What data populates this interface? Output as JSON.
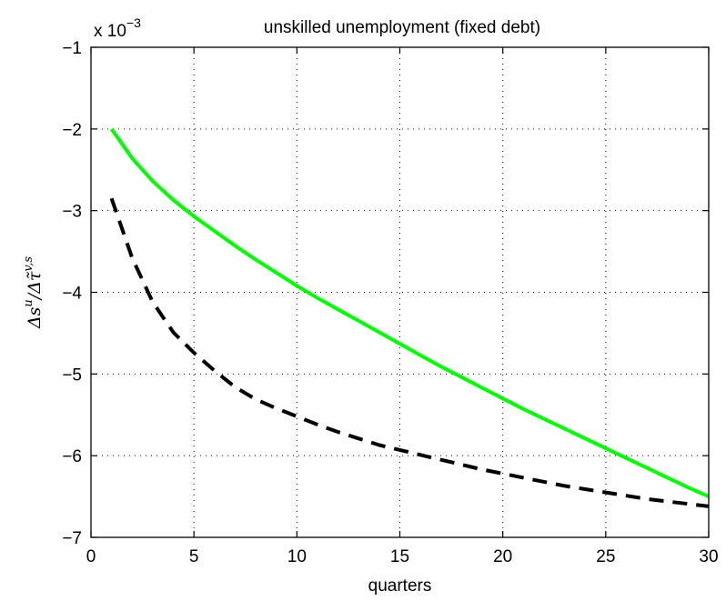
{
  "chart_data": {
    "type": "line",
    "title": "unskilled unemployment (fixed debt)",
    "xlabel": "quarters",
    "ylabel": "Δs^u/Δτ̃^{v,s}",
    "ylabel_parts": {
      "num_base": "Δs",
      "num_sup": "u",
      "sep": "/Δ",
      "den_base": "τ̃",
      "den_sup": "v,s"
    },
    "y_multiplier": {
      "base": "x 10",
      "exponent": "−3"
    },
    "xlim": [
      0,
      30
    ],
    "ylim": [
      -7,
      -1
    ],
    "xticks": [
      0,
      5,
      10,
      15,
      20,
      25,
      30
    ],
    "yticks": [
      -7,
      -6,
      -5,
      -4,
      -3,
      -2,
      -1
    ],
    "ytick_labels": [
      "−7",
      "−6",
      "−5",
      "−4",
      "−3",
      "−2",
      "−1"
    ],
    "grid": true,
    "series": [
      {
        "style": "solid",
        "color": "#00ff00",
        "x": [
          1,
          2,
          3,
          4,
          5,
          6,
          7,
          8,
          9,
          10,
          11,
          12,
          13,
          14,
          15,
          16,
          17,
          18,
          19,
          20,
          21,
          22,
          23,
          24,
          25,
          26,
          27,
          28,
          29,
          30
        ],
        "values": [
          -2.0,
          -2.36,
          -2.64,
          -2.87,
          -3.07,
          -3.25,
          -3.43,
          -3.6,
          -3.76,
          -3.92,
          -4.07,
          -4.21,
          -4.35,
          -4.49,
          -4.63,
          -4.77,
          -4.91,
          -5.04,
          -5.17,
          -5.3,
          -5.43,
          -5.55,
          -5.67,
          -5.79,
          -5.91,
          -6.03,
          -6.15,
          -6.27,
          -6.39,
          -6.5
        ]
      },
      {
        "style": "dashed",
        "color": "#000000",
        "x": [
          1,
          2,
          3,
          4,
          5,
          6,
          7,
          8,
          9,
          10,
          11,
          12,
          13,
          14,
          15,
          16,
          17,
          18,
          19,
          20,
          21,
          22,
          23,
          24,
          25,
          26,
          27,
          28,
          29,
          30
        ],
        "values": [
          -2.85,
          -3.58,
          -4.12,
          -4.49,
          -4.74,
          -4.96,
          -5.16,
          -5.31,
          -5.42,
          -5.52,
          -5.62,
          -5.71,
          -5.79,
          -5.87,
          -5.93,
          -5.99,
          -6.05,
          -6.11,
          -6.17,
          -6.22,
          -6.27,
          -6.32,
          -6.37,
          -6.41,
          -6.45,
          -6.49,
          -6.53,
          -6.56,
          -6.59,
          -6.62
        ]
      }
    ]
  }
}
